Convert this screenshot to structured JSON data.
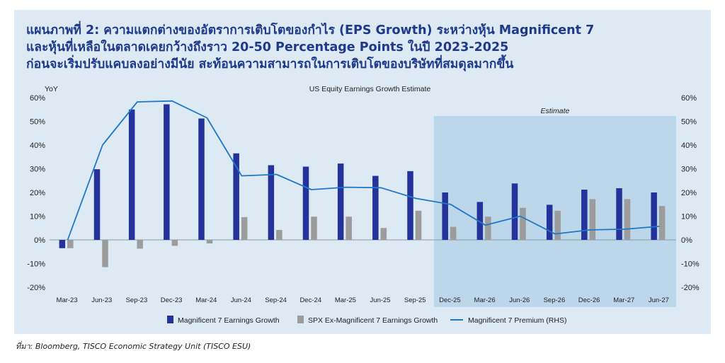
{
  "title_lines": [
    "แผนภาพที่ 2: ความแตกต่างของอัตราการเติบโตของกำไร (EPS Growth) ระหว่างหุ้น Magnificent 7",
    "และหุ้นที่เหลือในตลาดเคยกว้างถึงราว 20-50 Percentage Points ในปี 2023-2025",
    "ก่อนจะเริ่มปรับแคบลงอย่างมีนัย สะท้อนความสามารถในการเติบโตของบริษัทที่สมดุลมากขึ้น"
  ],
  "source": "ที่มา: Bloomberg, TISCO Economic Strategy Unit (TISCO ESU)",
  "colors": {
    "mag7": "#24339b",
    "spx": "#9c9c9c",
    "premium": "#1f78c8",
    "estimate_band": "#b6d3e8",
    "title": "#1f3a8a"
  },
  "chart_data": {
    "type": "bar",
    "title": "US Equity Earnings Growth Estimate",
    "y_left_label": "YoY",
    "ylim": [
      -20,
      60
    ],
    "y_ticks": [
      -20,
      -10,
      0,
      10,
      20,
      30,
      40,
      50,
      60
    ],
    "y_left_tick_labels": [
      "-20%",
      "-10%",
      "0%",
      "10%",
      "20%",
      "30%",
      "40%",
      "50%",
      "60%"
    ],
    "y_right_tick_labels": [
      "-20%",
      "-10%",
      "0%",
      "10%",
      "20%",
      "30%",
      "40%",
      "50%",
      "60%"
    ],
    "categories": [
      "Mar-23",
      "Jun-23",
      "Sep-23",
      "Dec-23",
      "Mar-24",
      "Jun-24",
      "Sep-24",
      "Dec-24",
      "Mar-25",
      "Jun-25",
      "Sep-25",
      "Dec-25",
      "Mar-26",
      "Jun-26",
      "Sep-26",
      "Dec-26",
      "Mar-27",
      "Jun-27"
    ],
    "estimate_label": "Estimate",
    "estimate_start": "Dec-25",
    "series": [
      {
        "name": "Magnificent 7 Earnings Growth",
        "kind": "bar",
        "axis": "left",
        "values": [
          -3.5,
          29.8,
          55,
          57.2,
          51.2,
          36.5,
          31.5,
          30.9,
          32.2,
          27,
          29,
          20,
          16,
          23.8,
          14.8,
          21.2,
          21.8,
          20
        ]
      },
      {
        "name": "SPX Ex-Magnificent 7 Earnings Growth",
        "kind": "bar",
        "axis": "left",
        "values": [
          -3.5,
          -11.5,
          -3.7,
          -2.5,
          -1.5,
          9.6,
          4.2,
          9.8,
          9.8,
          5,
          12.3,
          5.5,
          9.8,
          13.5,
          12.3,
          17.2,
          17.2,
          14.3
        ]
      },
      {
        "name": "Magnificent 7 Premium (RHS)",
        "kind": "line",
        "axis": "right",
        "values": [
          0,
          40,
          58.2,
          58.6,
          51.5,
          27,
          27.6,
          21.2,
          22.2,
          22,
          17.5,
          15,
          6.2,
          10,
          2.5,
          4.2,
          4.5,
          5.7
        ]
      }
    ]
  }
}
